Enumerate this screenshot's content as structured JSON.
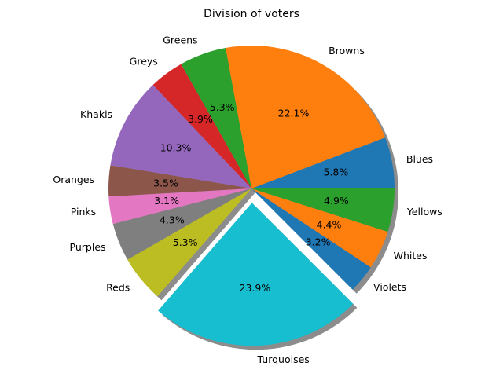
{
  "chart_data": {
    "type": "pie",
    "title": "Division of voters",
    "start_angle_deg": 0,
    "counterclock": true,
    "shadow": true,
    "slices": [
      {
        "label": "Blues",
        "value": 5.8,
        "pct_label": "5.8%",
        "color": "#1f77b4",
        "explode": 0
      },
      {
        "label": "Browns",
        "value": 22.1,
        "pct_label": "22.1%",
        "color": "#ff7f0e",
        "explode": 0
      },
      {
        "label": "Greens",
        "value": 5.3,
        "pct_label": "5.3%",
        "color": "#2ca02c",
        "explode": 0
      },
      {
        "label": "Greys",
        "value": 3.9,
        "pct_label": "3.9%",
        "color": "#d62728",
        "explode": 0
      },
      {
        "label": "Khakis",
        "value": 10.3,
        "pct_label": "10.3%",
        "color": "#9467bd",
        "explode": 0
      },
      {
        "label": "Oranges",
        "value": 3.5,
        "pct_label": "3.5%",
        "color": "#8c564b",
        "explode": 0
      },
      {
        "label": "Pinks",
        "value": 3.1,
        "pct_label": "3.1%",
        "color": "#e377c2",
        "explode": 0
      },
      {
        "label": "Purples",
        "value": 4.3,
        "pct_label": "4.3%",
        "color": "#7f7f7f",
        "explode": 0
      },
      {
        "label": "Reds",
        "value": 5.3,
        "pct_label": "5.3%",
        "color": "#bcbd22",
        "explode": 0
      },
      {
        "label": "Turquoises",
        "value": 23.9,
        "pct_label": "23.9%",
        "color": "#17becf",
        "explode": 0.1
      },
      {
        "label": "Violets",
        "value": 3.2,
        "pct_label": "3.2%",
        "color": "#1f77b4",
        "explode": 0
      },
      {
        "label": "Whites",
        "value": 4.4,
        "pct_label": "4.4%",
        "color": "#ff7f0e",
        "explode": 0
      },
      {
        "label": "Yellows",
        "value": 4.9,
        "pct_label": "4.9%",
        "color": "#2ca02c",
        "explode": 0
      }
    ]
  }
}
